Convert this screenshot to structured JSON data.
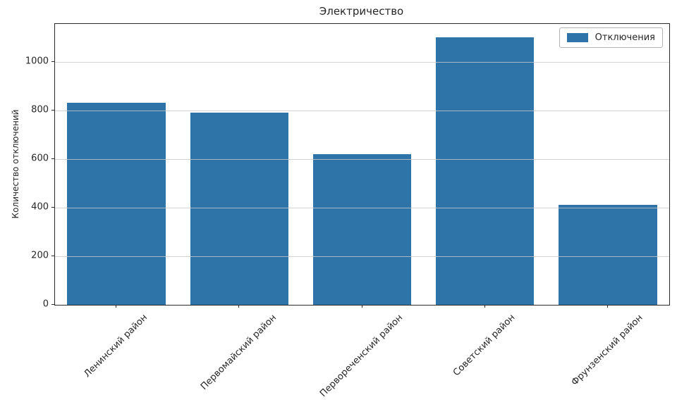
{
  "chart_data": {
    "type": "bar",
    "title": "Электричество",
    "xlabel": "",
    "ylabel": "Количество отключений",
    "categories": [
      "Ленинский район",
      "Первомайский район",
      "Первореченский район",
      "Советский район",
      "Фрунзенский район"
    ],
    "series": [
      {
        "name": "Отключения",
        "values": [
          830,
          790,
          620,
          1100,
          410
        ]
      }
    ],
    "yticks": [
      0,
      200,
      400,
      600,
      800,
      1000
    ],
    "ylim": [
      0,
      1155
    ],
    "grid": true,
    "gridline_color": "#c9c9c9",
    "legend_position": "upper right",
    "bar_color": "#2e74a8",
    "x_tick_label_rotation": 45
  }
}
